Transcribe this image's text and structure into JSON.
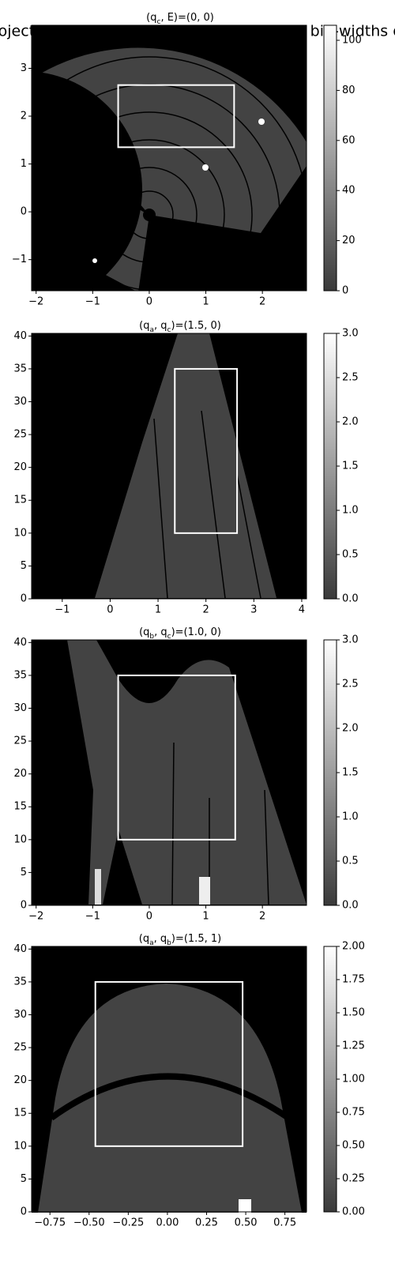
{
  "suptitle": "Projections of the intensity integrated over bin-widths op",
  "chart_data": [
    {
      "type": "heatmap",
      "title": [
        {
          "text": "(q"
        },
        {
          "text": "c",
          "sub": true
        },
        {
          "text": ", E)=(0, 0)"
        }
      ],
      "xlim": [
        -2.08,
        2.78
      ],
      "xticks": [
        {
          "value": -2,
          "label": "−2"
        },
        {
          "value": -1,
          "label": "−1"
        },
        0,
        1,
        2
      ],
      "ylim": [
        -1.65,
        3.9
      ],
      "yticks": [
        {
          "value": -1,
          "label": "−1"
        },
        0,
        1,
        2,
        3
      ],
      "box": {
        "x": [
          -0.55,
          1.5
        ],
        "y": [
          1.35,
          2.65
        ]
      },
      "colorbar": {
        "lim": [
          0,
          106
        ],
        "ticks": [
          0,
          20,
          40,
          60,
          80,
          100
        ]
      },
      "cmap": [
        "#3a3a3a",
        "#ffffff"
      ]
    },
    {
      "type": "heatmap",
      "title": [
        {
          "text": "(q"
        },
        {
          "text": "a",
          "sub": true
        },
        {
          "text": ", q"
        },
        {
          "text": "c",
          "sub": true
        },
        {
          "text": ")=(1.5, 0)"
        }
      ],
      "xlim": [
        -1.64,
        4.1
      ],
      "xticks": [
        {
          "value": -1,
          "label": "−1"
        },
        0,
        1,
        2,
        3,
        4
      ],
      "ylim": [
        0,
        40.4
      ],
      "yticks": [
        0,
        5,
        10,
        15,
        20,
        25,
        30,
        35,
        40
      ],
      "box": {
        "x": [
          1.35,
          2.65
        ],
        "y": [
          10,
          35
        ]
      },
      "colorbar": {
        "lim": [
          0,
          3
        ],
        "ticks": [
          {
            "value": 0,
            "label": "0.0"
          },
          {
            "value": 0.5,
            "label": "0.5"
          },
          {
            "value": 1,
            "label": "1.0"
          },
          {
            "value": 1.5,
            "label": "1.5"
          },
          {
            "value": 2,
            "label": "2.0"
          },
          {
            "value": 2.5,
            "label": "2.5"
          },
          {
            "value": 3,
            "label": "3.0"
          }
        ]
      },
      "cmap": [
        "#3a3a3a",
        "#ffffff"
      ]
    },
    {
      "type": "heatmap",
      "title": [
        {
          "text": "(q"
        },
        {
          "text": "b",
          "sub": true
        },
        {
          "text": ", q"
        },
        {
          "text": "c",
          "sub": true
        },
        {
          "text": ")=(1.0, 0)"
        }
      ],
      "xlim": [
        -2.08,
        2.78
      ],
      "xticks": [
        {
          "value": -2,
          "label": "−2"
        },
        {
          "value": -1,
          "label": "−1"
        },
        0,
        1,
        2
      ],
      "ylim": [
        0,
        40.4
      ],
      "yticks": [
        0,
        5,
        10,
        15,
        20,
        25,
        30,
        35,
        40
      ],
      "box": {
        "x": [
          -0.55,
          1.52
        ],
        "y": [
          10,
          35
        ]
      },
      "colorbar": {
        "lim": [
          0,
          3
        ],
        "ticks": [
          {
            "value": 0,
            "label": "0.0"
          },
          {
            "value": 0.5,
            "label": "0.5"
          },
          {
            "value": 1,
            "label": "1.0"
          },
          {
            "value": 1.5,
            "label": "1.5"
          },
          {
            "value": 2,
            "label": "2.0"
          },
          {
            "value": 2.5,
            "label": "2.5"
          },
          {
            "value": 3,
            "label": "3.0"
          }
        ]
      },
      "cmap": [
        "#3a3a3a",
        "#ffffff"
      ]
    },
    {
      "type": "heatmap",
      "title": [
        {
          "text": "(q"
        },
        {
          "text": "a",
          "sub": true
        },
        {
          "text": ", q"
        },
        {
          "text": "b",
          "sub": true
        },
        {
          "text": ")=(1.5, 1)"
        }
      ],
      "xlim": [
        -0.867,
        0.888
      ],
      "xticks": [
        {
          "value": -0.75,
          "label": "−0.75"
        },
        {
          "value": -0.5,
          "label": "−0.50"
        },
        {
          "value": -0.25,
          "label": "−0.25"
        },
        {
          "value": 0,
          "label": "0.00"
        },
        {
          "value": 0.25,
          "label": "0.25"
        },
        {
          "value": 0.5,
          "label": "0.50"
        },
        {
          "value": 0.75,
          "label": "0.75"
        }
      ],
      "ylim": [
        0,
        40.4
      ],
      "yticks": [
        0,
        5,
        10,
        15,
        20,
        25,
        30,
        35,
        40
      ],
      "box": {
        "x": [
          -0.46,
          0.48
        ],
        "y": [
          10,
          35
        ]
      },
      "colorbar": {
        "lim": [
          0,
          2
        ],
        "ticks": [
          {
            "value": 0,
            "label": "0.00"
          },
          {
            "value": 0.25,
            "label": "0.25"
          },
          {
            "value": 0.5,
            "label": "0.50"
          },
          {
            "value": 0.75,
            "label": "0.75"
          },
          {
            "value": 1,
            "label": "1.00"
          },
          {
            "value": 1.25,
            "label": "1.25"
          },
          {
            "value": 1.5,
            "label": "1.50"
          },
          {
            "value": 1.75,
            "label": "1.75"
          },
          {
            "value": 2,
            "label": "2.00"
          }
        ]
      },
      "cmap": [
        "#3a3a3a",
        "#ffffff"
      ]
    }
  ]
}
